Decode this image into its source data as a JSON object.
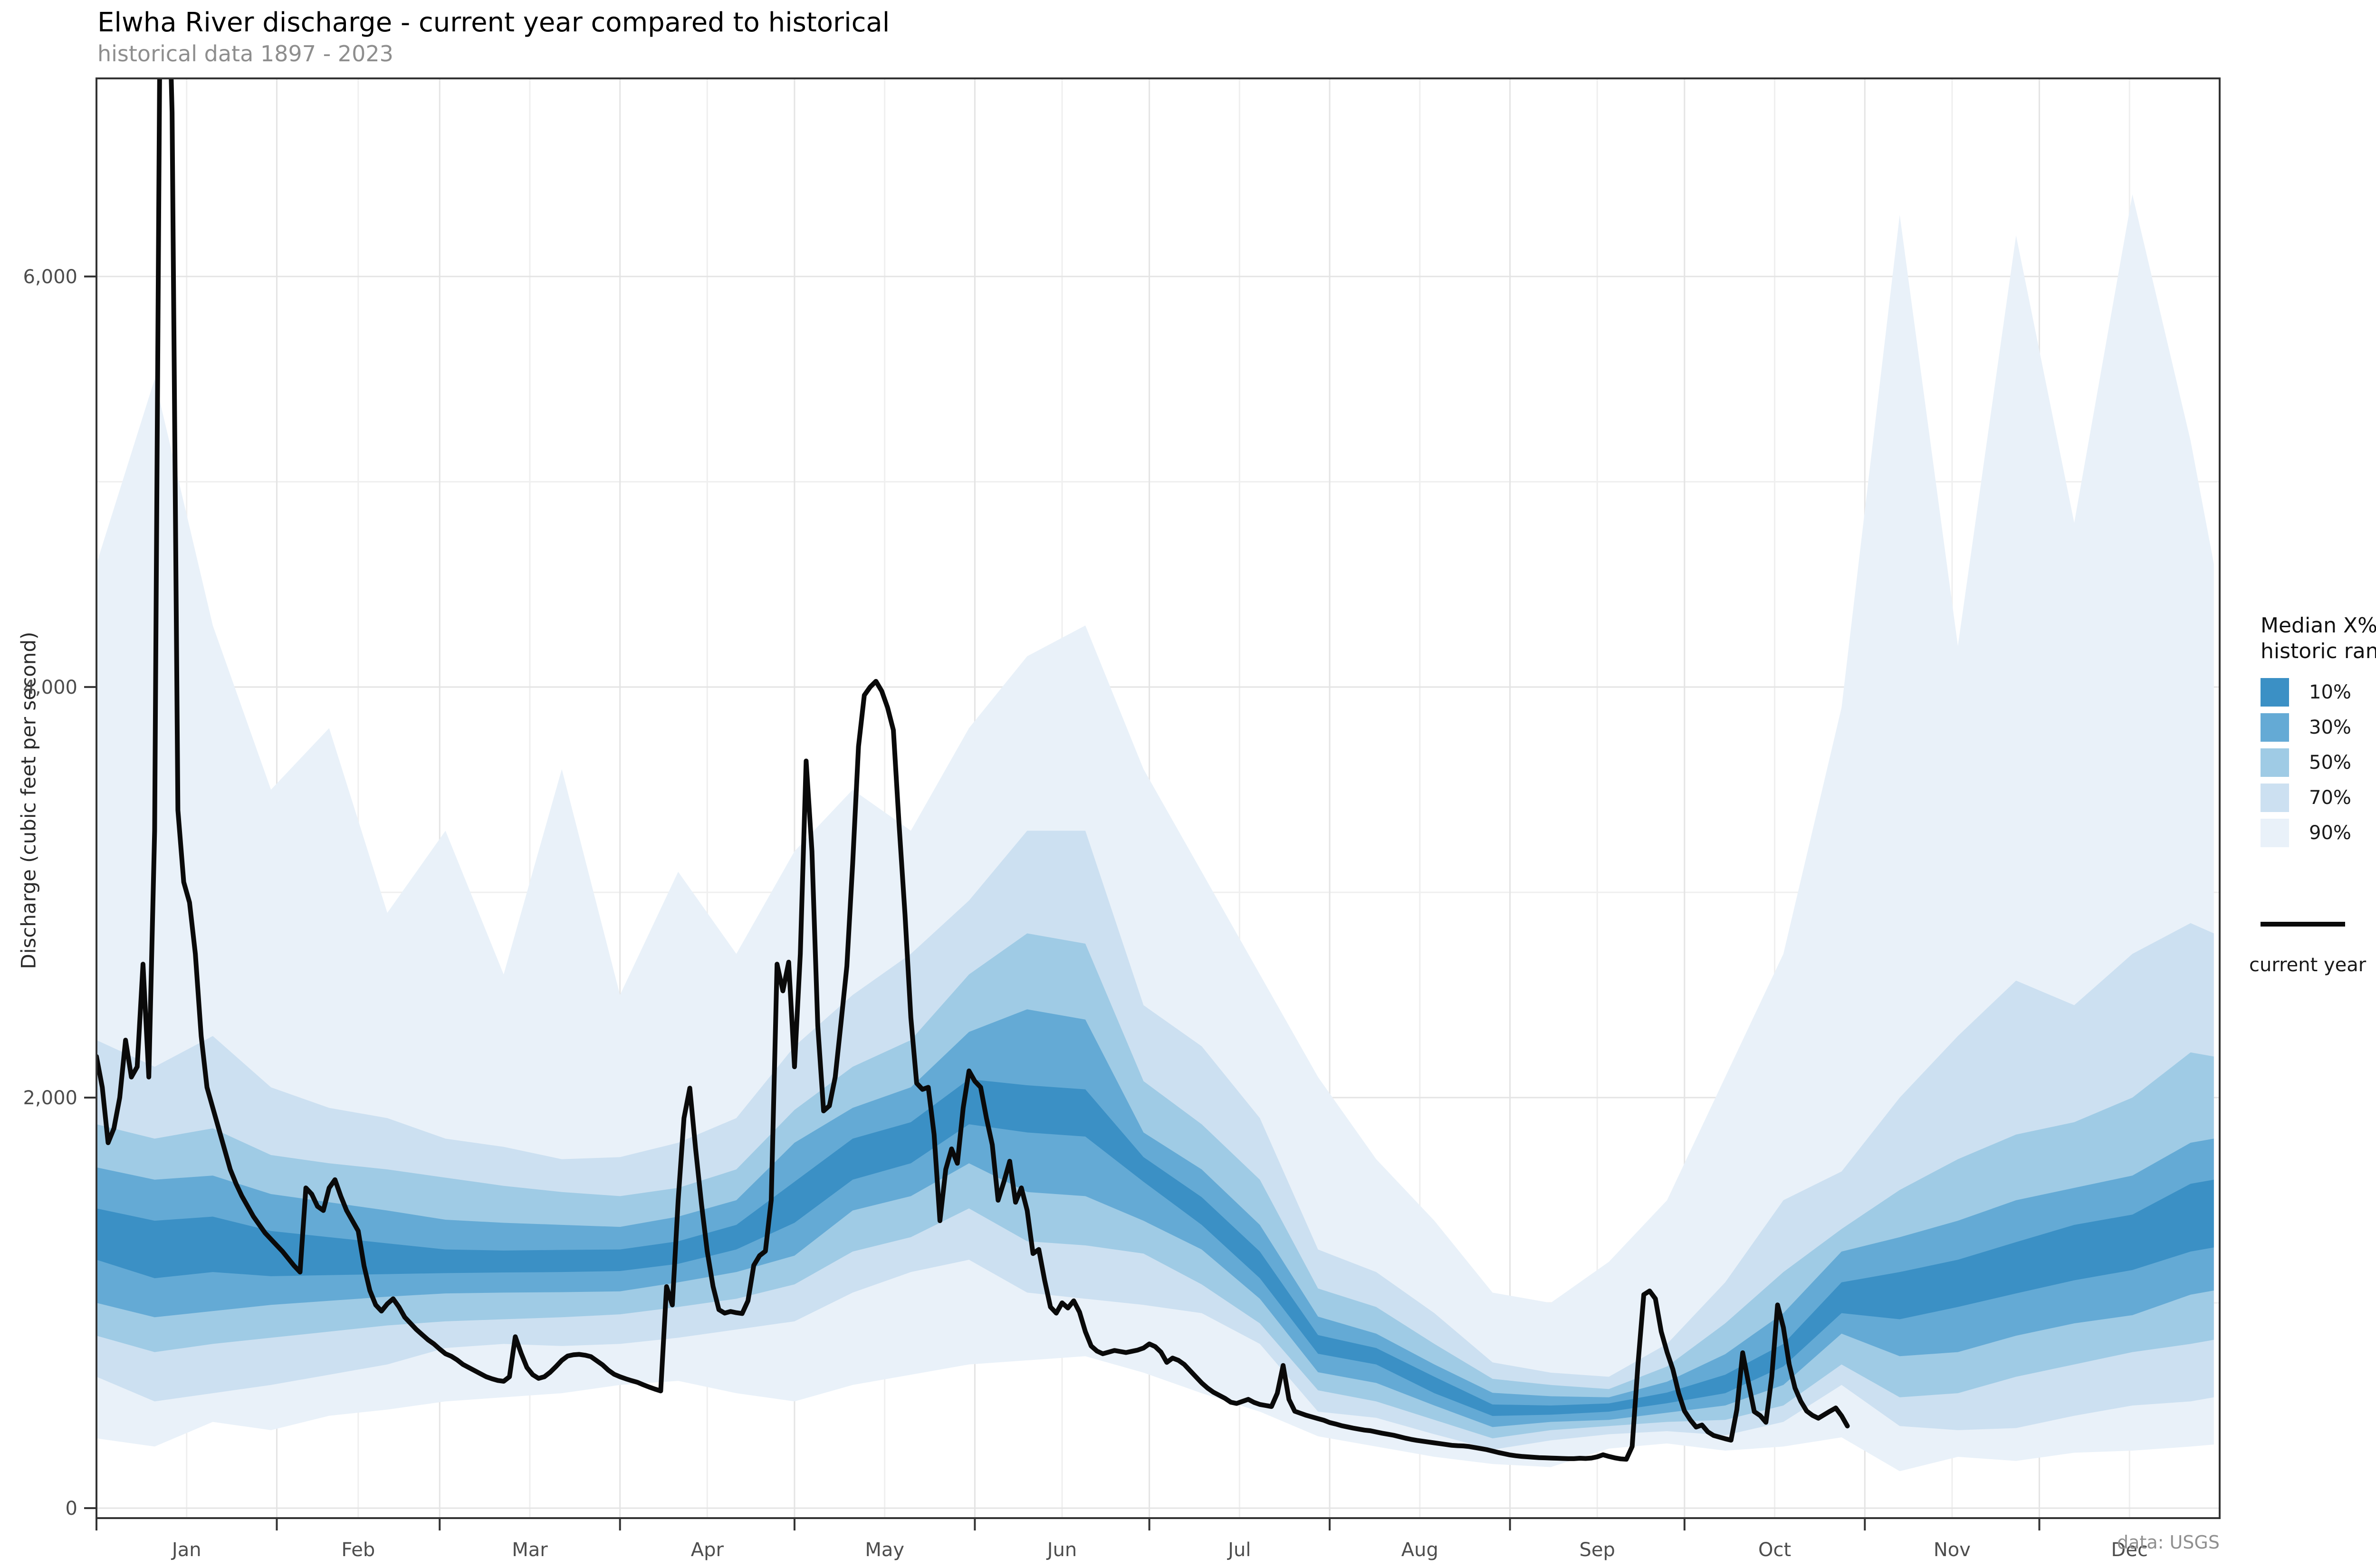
{
  "title": "Elwha River discharge - current year compared to historical",
  "subtitle": "historical data 1897 - 2023",
  "caption": "data: USGS",
  "y_axis": {
    "label": "Discharge (cubic feet per second)",
    "major_ticks": [
      0,
      2000,
      4000,
      6000
    ],
    "major_tick_labels": [
      "0",
      "2,000",
      "4,000",
      "6,000"
    ],
    "minor_ticks": [
      1000,
      3000,
      5000
    ]
  },
  "x_axis": {
    "months": [
      {
        "label": "Jan",
        "start_day": 1,
        "num_days": 31
      },
      {
        "label": "Feb",
        "start_day": 32,
        "num_days": 28
      },
      {
        "label": "Mar",
        "start_day": 60,
        "num_days": 31
      },
      {
        "label": "Apr",
        "start_day": 91,
        "num_days": 30
      },
      {
        "label": "May",
        "start_day": 121,
        "num_days": 31
      },
      {
        "label": "Jun",
        "start_day": 152,
        "num_days": 30
      },
      {
        "label": "Jul",
        "start_day": 182,
        "num_days": 31
      },
      {
        "label": "Aug",
        "start_day": 213,
        "num_days": 31
      },
      {
        "label": "Sep",
        "start_day": 244,
        "num_days": 30
      },
      {
        "label": "Oct",
        "start_day": 274,
        "num_days": 31
      },
      {
        "label": "Nov",
        "start_day": 305,
        "num_days": 30
      },
      {
        "label": "Dec",
        "start_day": 335,
        "num_days": 31
      }
    ]
  },
  "legend": {
    "title_line1": "Median X% of",
    "title_line2": "historic range",
    "bands": [
      {
        "label": "10%",
        "color": "#3b90c5"
      },
      {
        "label": "30%",
        "color": "#64aad5"
      },
      {
        "label": "50%",
        "color": "#9fcbe5"
      },
      {
        "label": "70%",
        "color": "#cce0f1"
      },
      {
        "label": "90%",
        "color": "#e9f1f9"
      }
    ],
    "line_label": "current year",
    "line_color": "#0a0a0a"
  },
  "style": {
    "grid_major_color": "#e4e4e4",
    "grid_minor_color": "#efefef",
    "panel_border_color": "#333333",
    "tick_color": "#333333",
    "axis_text_color": "#4d4d4d",
    "line_color": "#0a0a0a"
  },
  "chart_data": {
    "type": "area",
    "subtype": "fan-percentile-bands-plus-line",
    "title": "Elwha River discharge - current year compared to historical",
    "subtitle": "historical data 1897 - 2023",
    "xlabel": "",
    "ylabel": "Discharge (cubic feet per second)",
    "x_unit": "day of year",
    "xlim": [
      1,
      366
    ],
    "ylim": [
      0,
      6965
    ],
    "grid": "on",
    "legend_position": "right",
    "band_days": [
      1,
      11,
      21,
      31,
      41,
      51,
      61,
      71,
      81,
      91,
      101,
      111,
      121,
      131,
      141,
      151,
      161,
      171,
      181,
      191,
      201,
      211,
      221,
      231,
      241,
      251,
      261,
      271,
      281,
      291,
      301,
      311,
      321,
      331,
      341,
      351,
      361,
      365
    ],
    "bands": [
      {
        "name": "90%",
        "color": "#e9f1f9",
        "top": [
          4600,
          5500,
          4300,
          3500,
          3800,
          2900,
          3300,
          2600,
          3600,
          2500,
          3100,
          2700,
          3200,
          3500,
          3300,
          3800,
          4150,
          4300,
          3600,
          3100,
          2600,
          2100,
          1700,
          1400,
          1050,
          1000,
          1200,
          1500,
          2100,
          2700,
          3900,
          6300,
          4200,
          6200,
          4800,
          6400,
          5200,
          4600
        ],
        "bottom": [
          340,
          300,
          420,
          380,
          450,
          480,
          520,
          540,
          560,
          600,
          620,
          560,
          520,
          600,
          650,
          700,
          720,
          740,
          660,
          560,
          470,
          350,
          300,
          250,
          215,
          200,
          290,
          315,
          280,
          300,
          345,
          180,
          250,
          230,
          270,
          280,
          300,
          310
        ]
      },
      {
        "name": "70%",
        "color": "#cce0f1",
        "top": [
          2280,
          2150,
          2300,
          2050,
          1950,
          1900,
          1800,
          1760,
          1700,
          1710,
          1780,
          1900,
          2250,
          2500,
          2700,
          2960,
          3300,
          3300,
          2450,
          2250,
          1900,
          1260,
          1150,
          950,
          710,
          660,
          640,
          800,
          1100,
          1500,
          1640,
          2000,
          2300,
          2570,
          2450,
          2700,
          2850,
          2800
        ],
        "bottom": [
          640,
          520,
          560,
          600,
          650,
          700,
          780,
          800,
          790,
          800,
          830,
          870,
          910,
          1050,
          1150,
          1210,
          1050,
          1020,
          990,
          950,
          800,
          470,
          440,
          360,
          285,
          330,
          360,
          375,
          355,
          420,
          600,
          400,
          380,
          390,
          450,
          500,
          520,
          540
        ]
      },
      {
        "name": "50%",
        "color": "#9fcbe5",
        "top": [
          1870,
          1800,
          1850,
          1720,
          1680,
          1650,
          1610,
          1570,
          1540,
          1520,
          1560,
          1650,
          1940,
          2150,
          2280,
          2600,
          2800,
          2750,
          2080,
          1870,
          1600,
          1070,
          980,
          800,
          630,
          600,
          580,
          690,
          900,
          1150,
          1360,
          1550,
          1700,
          1820,
          1880,
          2000,
          2220,
          2200
        ],
        "bottom": [
          840,
          760,
          800,
          830,
          860,
          890,
          910,
          920,
          930,
          944,
          980,
          1020,
          1090,
          1250,
          1320,
          1460,
          1300,
          1280,
          1240,
          1090,
          900,
          574,
          520,
          430,
          340,
          380,
          400,
          420,
          430,
          500,
          700,
          540,
          560,
          640,
          700,
          760,
          800,
          820
        ]
      },
      {
        "name": "30%",
        "color": "#64aad5",
        "top": [
          1660,
          1600,
          1620,
          1530,
          1490,
          1450,
          1405,
          1390,
          1380,
          1370,
          1420,
          1500,
          1780,
          1950,
          2050,
          2320,
          2430,
          2380,
          1830,
          1650,
          1380,
          933,
          850,
          700,
          562,
          545,
          540,
          616,
          750,
          950,
          1250,
          1320,
          1400,
          1500,
          1560,
          1620,
          1780,
          1800
        ],
        "bottom": [
          1000,
          930,
          960,
          990,
          1010,
          1030,
          1046,
          1050,
          1052,
          1056,
          1100,
          1150,
          1230,
          1450,
          1520,
          1680,
          1540,
          1520,
          1400,
          1260,
          1020,
          662,
          610,
          500,
          395,
          420,
          430,
          465,
          500,
          600,
          850,
          740,
          760,
          840,
          900,
          940,
          1040,
          1060
        ]
      },
      {
        "name": "10%",
        "color": "#3b90c5",
        "top": [
          1460,
          1400,
          1420,
          1350,
          1320,
          1290,
          1260,
          1255,
          1258,
          1260,
          1300,
          1380,
          1590,
          1800,
          1880,
          2090,
          2060,
          2040,
          1710,
          1515,
          1250,
          843,
          780,
          640,
          505,
          500,
          510,
          563,
          650,
          800,
          1100,
          1150,
          1210,
          1296,
          1380,
          1430,
          1580,
          1600
        ],
        "bottom": [
          1210,
          1120,
          1150,
          1130,
          1135,
          1140,
          1145,
          1148,
          1150,
          1155,
          1190,
          1260,
          1390,
          1600,
          1680,
          1870,
          1830,
          1810,
          1590,
          1380,
          1120,
          752,
          700,
          560,
          449,
          455,
          470,
          511,
          560,
          690,
          950,
          920,
          980,
          1046,
          1110,
          1160,
          1250,
          1270
        ]
      }
    ],
    "current_year_line": {
      "name": "current year",
      "color": "#0a0a0a",
      "start_day": 1,
      "values": [
        2200,
        2050,
        1780,
        1850,
        2000,
        2280,
        2100,
        2150,
        2650,
        2100,
        3300,
        7600,
        7900,
        6800,
        3400,
        3050,
        2950,
        2700,
        2300,
        2050,
        1950,
        1850,
        1750,
        1650,
        1580,
        1520,
        1470,
        1420,
        1380,
        1340,
        1310,
        1280,
        1250,
        1215,
        1180,
        1150,
        1560,
        1530,
        1470,
        1450,
        1560,
        1600,
        1520,
        1450,
        1400,
        1350,
        1180,
        1060,
        990,
        960,
        995,
        1020,
        980,
        930,
        900,
        870,
        845,
        820,
        800,
        775,
        752,
        740,
        722,
        700,
        685,
        670,
        655,
        640,
        630,
        622,
        618,
        640,
        835,
        755,
        685,
        650,
        632,
        640,
        662,
        690,
        720,
        741,
        747,
        749,
        745,
        738,
        718,
        698,
        672,
        652,
        640,
        630,
        621,
        613,
        601,
        590,
        580,
        571,
        1079,
        990,
        1500,
        1900,
        2046,
        1750,
        1484,
        1250,
        1080,
        967,
        950,
        958,
        952,
        948,
        1010,
        1183,
        1230,
        1252,
        1500,
        2650,
        2520,
        2660,
        2150,
        2700,
        3640,
        3200,
        2350,
        1935,
        1960,
        2100,
        2366,
        2640,
        3140,
        3710,
        3960,
        4000,
        4028,
        3980,
        3900,
        3790,
        3320,
        2890,
        2390,
        2070,
        2040,
        2050,
        1820,
        1400,
        1650,
        1750,
        1680,
        1950,
        2130,
        2080,
        2050,
        1900,
        1770,
        1500,
        1590,
        1690,
        1490,
        1560,
        1450,
        1240,
        1260,
        1110,
        980,
        950,
        1000,
        975,
        1010,
        955,
        860,
        790,
        765,
        752,
        760,
        768,
        763,
        758,
        764,
        770,
        780,
        800,
        787,
        760,
        710,
        731,
        720,
        700,
        670,
        640,
        610,
        585,
        565,
        550,
        535,
        516,
        510,
        520,
        530,
        515,
        505,
        500,
        495,
        560,
        695,
        530,
        472,
        462,
        452,
        444,
        436,
        428,
        417,
        410,
        402,
        396,
        390,
        385,
        380,
        377,
        371,
        365,
        360,
        355,
        348,
        341,
        335,
        330,
        326,
        322,
        318,
        314,
        310,
        306,
        304,
        303,
        300,
        295,
        290,
        285,
        278,
        271,
        265,
        259,
        255,
        252,
        250,
        248,
        246,
        245,
        244,
        243,
        242,
        241,
        241,
        243,
        242,
        244,
        250,
        260,
        252,
        245,
        240,
        238,
        300,
        700,
        1040,
        1058,
        1020,
        860,
        760,
        676,
        560,
        473,
        430,
        395,
        405,
        372,
        354,
        346,
        338,
        331,
        480,
        757,
        610,
        470,
        451,
        418,
        640,
        990,
        880,
        700,
        585,
        520,
        473,
        452,
        438,
        455,
        472,
        488,
        450,
        400
      ]
    }
  }
}
